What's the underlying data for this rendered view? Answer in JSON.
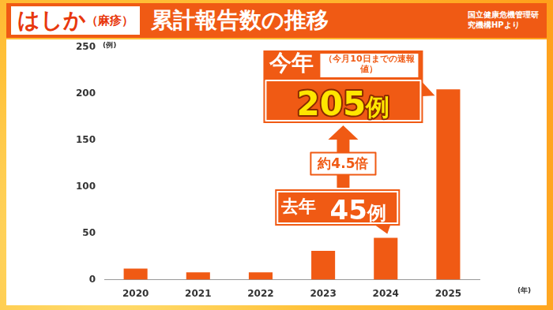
{
  "chart_data": {
    "type": "bar",
    "title": "はしか（麻疹）累計報告数の推移",
    "source": "国立健康危機管理研究機構HPより",
    "y_label": "(例)",
    "x_label": "(年)",
    "categories": [
      "2020",
      "2021",
      "2022",
      "2023",
      "2024",
      "2025"
    ],
    "values": [
      12,
      8,
      8,
      31,
      45,
      205
    ],
    "value_labels": [
      null,
      null,
      null,
      null,
      "45例",
      "205例"
    ],
    "data_labels": true,
    "color": "#f05a14",
    "ylim": [
      0,
      250
    ],
    "yticks": [
      0,
      50,
      100,
      150,
      200,
      250
    ],
    "grid": false,
    "annotations": [
      {
        "category": "2024",
        "text": "去年"
      },
      {
        "category": "2025",
        "text": "今年",
        "note": "（今月10日までの速報値）"
      },
      {
        "from": "2024",
        "to": "2025",
        "text": "約4.5倍"
      }
    ]
  }
}
